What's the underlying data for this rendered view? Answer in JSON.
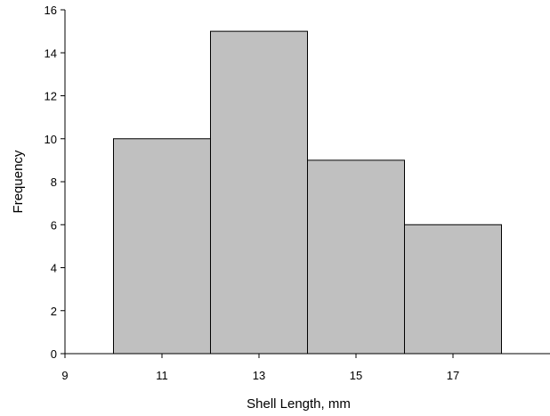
{
  "chart_data": {
    "type": "bar",
    "histogram": true,
    "bins": [
      {
        "start": 10,
        "end": 12,
        "value": 10
      },
      {
        "start": 12,
        "end": 14,
        "value": 15
      },
      {
        "start": 14,
        "end": 16,
        "value": 9
      },
      {
        "start": 16,
        "end": 18,
        "value": 6
      }
    ],
    "xlabel": "Shell Length, mm",
    "ylabel": "Frequency",
    "xlim": [
      9,
      19
    ],
    "ylim": [
      0,
      16
    ],
    "x_ticks": [
      9,
      11,
      13,
      15,
      17
    ],
    "y_ticks": [
      0,
      2,
      4,
      6,
      8,
      10,
      12,
      14,
      16
    ],
    "grid": false,
    "bar_fill": "#c0c0c0",
    "bar_stroke": "#000000"
  }
}
